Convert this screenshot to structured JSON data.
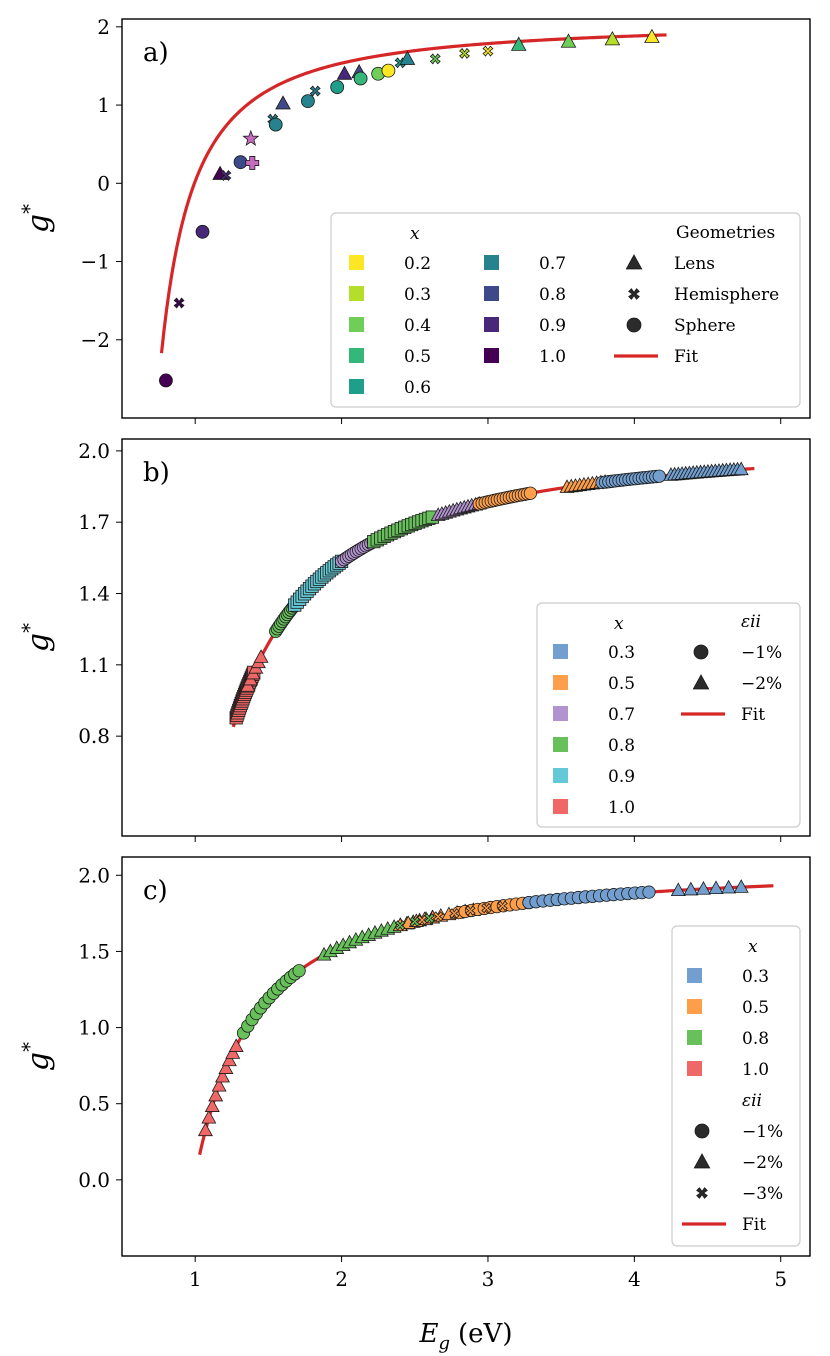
{
  "figure": {
    "xlabel": "E_g (eV)",
    "xlabel_base": "E",
    "xlabel_sub": "g",
    "xlabel_unit": "(eV)",
    "ylabel_base": "g",
    "ylabel_sup": "*",
    "xticks": [
      1,
      2,
      3,
      4,
      5
    ],
    "xtick_labels": [
      "1",
      "2",
      "3",
      "4",
      "5"
    ],
    "xlim": [
      0.5,
      5.2
    ],
    "fit_color": "#d62728"
  },
  "chart_data": [
    {
      "type": "scatter",
      "panel_label": "a)",
      "ylim": [
        -3.0,
        2.1
      ],
      "yticks": [
        -2,
        -1,
        0,
        1,
        2
      ],
      "ytick_labels": [
        "−2",
        "−1",
        "0",
        "1",
        "2"
      ],
      "fit": {
        "a": 2.07,
        "b": 0.95,
        "x_start": 0.77,
        "x_end": 4.22
      },
      "legend": {
        "x_title": "x",
        "geom_title": "Geometries",
        "x_entries": [
          {
            "label": "0.2",
            "color": "#fde725"
          },
          {
            "label": "0.3",
            "color": "#b5de2b"
          },
          {
            "label": "0.4",
            "color": "#6ece58"
          },
          {
            "label": "0.5",
            "color": "#35b779"
          },
          {
            "label": "0.6",
            "color": "#1f9e89"
          },
          {
            "label": "0.7",
            "color": "#26828e"
          },
          {
            "label": "0.8",
            "color": "#3e4989"
          },
          {
            "label": "0.9",
            "color": "#482878"
          },
          {
            "label": "1.0",
            "color": "#440154"
          }
        ],
        "marker_entries": [
          {
            "marker": "triangle",
            "label": "Lens"
          },
          {
            "marker": "x",
            "label": "Hemisphere"
          },
          {
            "marker": "circle",
            "label": "Sphere"
          }
        ],
        "fit_label": "Fit"
      },
      "points": [
        {
          "x": 0.8,
          "y": -2.52,
          "m": "circle",
          "c": "#440154"
        },
        {
          "x": 0.89,
          "y": -1.53,
          "m": "x",
          "c": "#440154"
        },
        {
          "x": 1.05,
          "y": -0.62,
          "m": "circle",
          "c": "#482878"
        },
        {
          "x": 1.17,
          "y": 0.12,
          "m": "triangle",
          "c": "#440154"
        },
        {
          "x": 1.21,
          "y": 0.1,
          "m": "x",
          "c": "#482878"
        },
        {
          "x": 1.31,
          "y": 0.27,
          "m": "circle",
          "c": "#3e4989"
        },
        {
          "x": 1.38,
          "y": 0.57,
          "m": "star",
          "c": "#c76bbd"
        },
        {
          "x": 1.39,
          "y": 0.26,
          "m": "plus",
          "c": "#c76bbd"
        },
        {
          "x": 1.53,
          "y": 0.82,
          "m": "x",
          "c": "#26828e"
        },
        {
          "x": 1.55,
          "y": 0.75,
          "m": "circle",
          "c": "#26828e"
        },
        {
          "x": 1.6,
          "y": 1.02,
          "m": "triangle",
          "c": "#3e4989"
        },
        {
          "x": 1.77,
          "y": 1.05,
          "m": "circle",
          "c": "#26828e"
        },
        {
          "x": 1.82,
          "y": 1.18,
          "m": "x",
          "c": "#26828e"
        },
        {
          "x": 1.97,
          "y": 1.23,
          "m": "circle",
          "c": "#1f9e89"
        },
        {
          "x": 2.02,
          "y": 1.4,
          "m": "triangle",
          "c": "#482878"
        },
        {
          "x": 2.12,
          "y": 1.42,
          "m": "triangle",
          "c": "#3e4989"
        },
        {
          "x": 2.13,
          "y": 1.34,
          "m": "circle",
          "c": "#35b779"
        },
        {
          "x": 2.25,
          "y": 1.4,
          "m": "circle",
          "c": "#6ece58"
        },
        {
          "x": 2.32,
          "y": 1.44,
          "m": "circle",
          "c": "#fde725"
        },
        {
          "x": 2.4,
          "y": 1.54,
          "m": "x",
          "c": "#1f9e89"
        },
        {
          "x": 2.45,
          "y": 1.59,
          "m": "triangle",
          "c": "#26828e"
        },
        {
          "x": 2.64,
          "y": 1.59,
          "m": "x",
          "c": "#6ece58"
        },
        {
          "x": 2.84,
          "y": 1.66,
          "m": "x",
          "c": "#b5de2b"
        },
        {
          "x": 3.0,
          "y": 1.69,
          "m": "x",
          "c": "#fde725"
        },
        {
          "x": 3.21,
          "y": 1.77,
          "m": "triangle",
          "c": "#35b779"
        },
        {
          "x": 3.55,
          "y": 1.81,
          "m": "triangle",
          "c": "#6ece58"
        },
        {
          "x": 3.85,
          "y": 1.84,
          "m": "triangle",
          "c": "#b5de2b"
        },
        {
          "x": 4.12,
          "y": 1.87,
          "m": "triangle",
          "c": "#fde725"
        }
      ]
    },
    {
      "type": "scatter",
      "panel_label": "b)",
      "ylim": [
        0.38,
        2.05
      ],
      "yticks": [
        0.8,
        1.1,
        1.4,
        1.7,
        2.0
      ],
      "ytick_labels": [
        "0.8",
        "1.1",
        "1.4",
        "1.7",
        "2.0"
      ],
      "fit": {
        "a": 2.07,
        "b": 0.95,
        "x_start": 1.26,
        "x_end": 4.82
      },
      "legend": {
        "x_title": "x",
        "strain_title": "εii",
        "x_entries": [
          {
            "label": "0.3",
            "color": "#729fcf"
          },
          {
            "label": "0.5",
            "color": "#fd9f4a"
          },
          {
            "label": "0.7",
            "color": "#b193cf"
          },
          {
            "label": "0.8",
            "color": "#67c05a"
          },
          {
            "label": "0.9",
            "color": "#64c9d6"
          },
          {
            "label": "1.0",
            "color": "#ef6767"
          }
        ],
        "marker_entries": [
          {
            "marker": "circle",
            "label": "−1%"
          },
          {
            "marker": "triangle",
            "label": "−2%"
          }
        ],
        "fit_label": "Fit"
      },
      "series": [
        {
          "name": "1.0",
          "c": "#ef6767",
          "m": "square",
          "x_range": [
            1.28,
            1.4
          ],
          "n": 22
        },
        {
          "name": "1.0-tri",
          "c": "#ef6767",
          "m": "triangle",
          "x_range": [
            1.36,
            1.45
          ],
          "n": 6
        },
        {
          "name": "0.8-circ",
          "c": "#67c05a",
          "m": "circle",
          "x_range": [
            1.55,
            1.72
          ],
          "n": 16
        },
        {
          "name": "0.9",
          "c": "#64c9d6",
          "m": "square",
          "x_range": [
            1.68,
            2.0
          ],
          "n": 20
        },
        {
          "name": "0.7",
          "c": "#b193cf",
          "m": "circle",
          "x_range": [
            2.0,
            2.25
          ],
          "n": 16
        },
        {
          "name": "0.8-sq",
          "c": "#67c05a",
          "m": "square",
          "x_range": [
            2.22,
            2.62
          ],
          "n": 18
        },
        {
          "name": "0.7-tri",
          "c": "#b193cf",
          "m": "triangle",
          "x_range": [
            2.66,
            2.94
          ],
          "n": 12
        },
        {
          "name": "0.5",
          "c": "#fd9f4a",
          "m": "circle",
          "x_range": [
            2.94,
            3.29
          ],
          "n": 18
        },
        {
          "name": "0.5-tri",
          "c": "#fd9f4a",
          "m": "triangle",
          "x_range": [
            3.54,
            3.8
          ],
          "n": 10
        },
        {
          "name": "0.3",
          "c": "#729fcf",
          "m": "circle",
          "x_range": [
            3.78,
            4.17
          ],
          "n": 18
        },
        {
          "name": "0.3-tri",
          "c": "#729fcf",
          "m": "triangle",
          "x_range": [
            4.25,
            4.73
          ],
          "n": 20
        }
      ]
    },
    {
      "type": "scatter",
      "panel_label": "c)",
      "ylim": [
        -0.5,
        2.12
      ],
      "yticks": [
        0.0,
        0.5,
        1.0,
        1.5,
        2.0
      ],
      "ytick_labels": [
        "0.0",
        "0.5",
        "1.0",
        "1.5",
        "2.0"
      ],
      "fit": {
        "a": 2.07,
        "b": 0.95,
        "x_start": 1.03,
        "x_end": 4.95
      },
      "legend": {
        "x_title": "x",
        "strain_title": "εii",
        "x_entries": [
          {
            "label": "0.3",
            "color": "#729fcf"
          },
          {
            "label": "0.5",
            "color": "#fd9f4a"
          },
          {
            "label": "0.8",
            "color": "#67c05a"
          },
          {
            "label": "1.0",
            "color": "#ef6767"
          }
        ],
        "marker_entries": [
          {
            "marker": "circle",
            "label": "−1%"
          },
          {
            "marker": "triangle",
            "label": "−2%"
          },
          {
            "marker": "x",
            "label": "−3%"
          }
        ],
        "fit_label": "Fit"
      },
      "series": [
        {
          "name": "1.0",
          "c": "#ef6767",
          "m": "triangle",
          "x_range": [
            1.07,
            1.28
          ],
          "n": 10
        },
        {
          "name": "0.8-circ",
          "c": "#67c05a",
          "m": "circle",
          "x_range": [
            1.33,
            1.71
          ],
          "n": 14
        },
        {
          "name": "0.8-tri",
          "c": "#67c05a",
          "m": "triangle",
          "x_range": [
            1.88,
            2.62
          ],
          "n": 18
        },
        {
          "name": "0.5-tri",
          "c": "#fd9f4a",
          "m": "triangle",
          "x_range": [
            2.4,
            2.9
          ],
          "n": 10
        },
        {
          "name": "0.5-circ",
          "c": "#fd9f4a",
          "m": "circle",
          "x_range": [
            2.8,
            3.28
          ],
          "n": 12
        },
        {
          "name": "0.3-circ",
          "c": "#729fcf",
          "m": "circle",
          "x_range": [
            3.28,
            4.1
          ],
          "n": 18
        },
        {
          "name": "0.3-tri",
          "c": "#729fcf",
          "m": "triangle",
          "x_range": [
            4.3,
            4.73
          ],
          "n": 6
        },
        {
          "name": "0.5-x",
          "c": "#fd9f4a",
          "m": "x",
          "x_range": [
            2.55,
            3.1
          ],
          "n": 6
        },
        {
          "name": "0.8-x",
          "c": "#67c05a",
          "m": "x",
          "x_range": [
            2.4,
            2.6
          ],
          "n": 3
        }
      ]
    }
  ]
}
